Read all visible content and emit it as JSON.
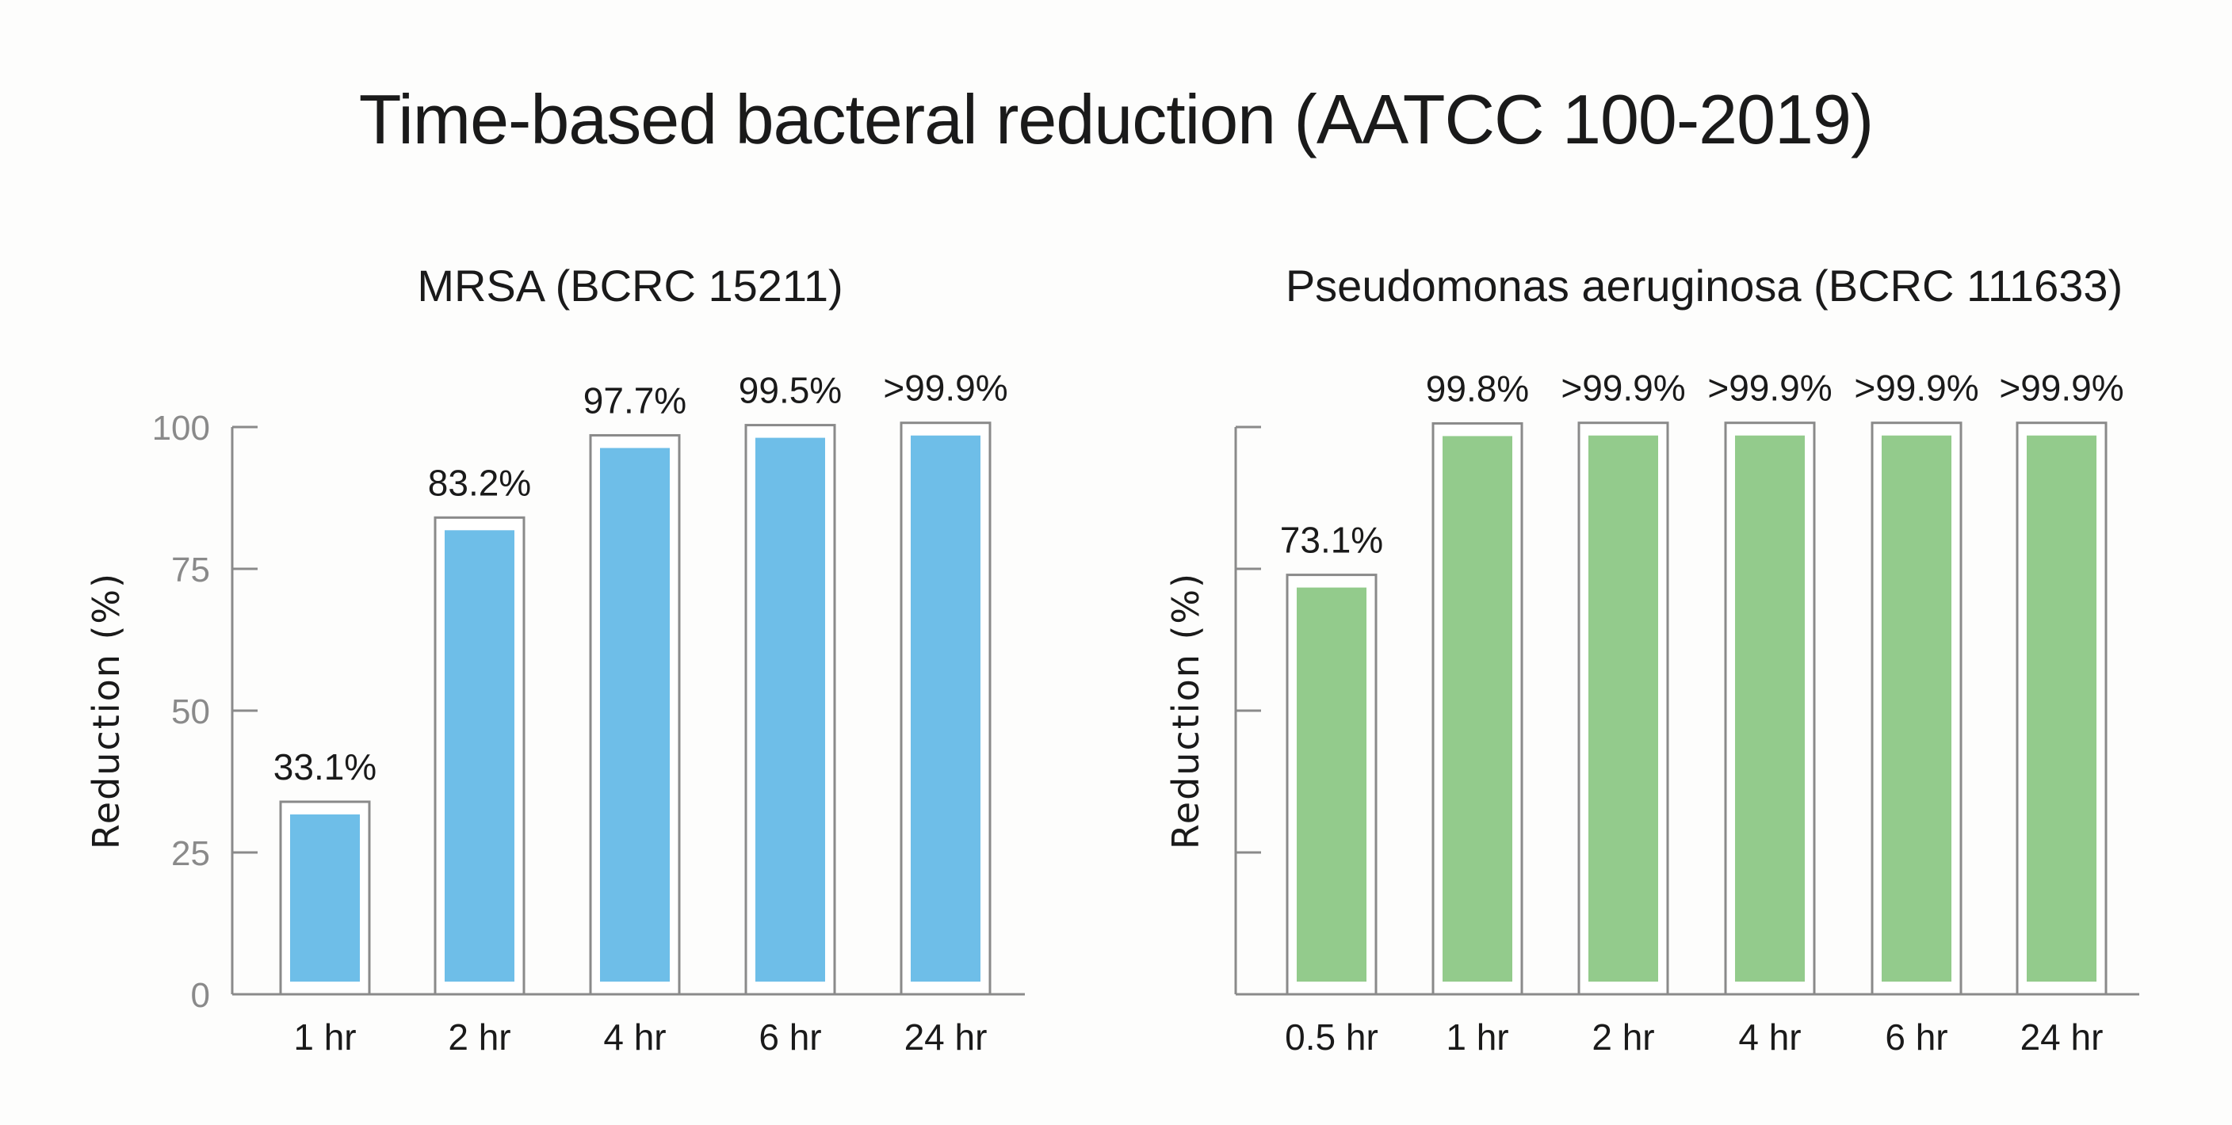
{
  "title": "Time-based bacteral reduction (AATCC 100-2019)",
  "chart_data": [
    {
      "type": "bar",
      "title": "MRSA (BCRC 15211)",
      "xlabel": "",
      "ylabel": "Reduction (%)",
      "ylim": [
        0,
        100
      ],
      "yticks": [
        0,
        25,
        50,
        75,
        100
      ],
      "grid": false,
      "categories": [
        "1 hr",
        "2 hr",
        "4 hr",
        "6 hr",
        "24 hr"
      ],
      "values": [
        33.1,
        83.2,
        97.7,
        99.5,
        99.9
      ],
      "data_labels": [
        "33.1%",
        "83.2%",
        "97.7%",
        "99.5%",
        ">99.9%"
      ],
      "color": "#6EBEE8"
    },
    {
      "type": "bar",
      "title": "Pseudomonas aeruginosa (BCRC 111633)",
      "xlabel": "",
      "ylabel": "Reduction (%)",
      "ylim": [
        0,
        100
      ],
      "yticks": [
        0,
        25,
        50,
        75,
        100
      ],
      "ytick_labels_shown": false,
      "grid": false,
      "categories": [
        "0.5 hr",
        "1 hr",
        "2 hr",
        "4 hr",
        "6 hr",
        "24 hr"
      ],
      "values": [
        73.1,
        99.8,
        99.9,
        99.9,
        99.9,
        99.9
      ],
      "data_labels": [
        "73.1%",
        "99.8%",
        ">99.9%",
        ">99.9%",
        ">99.9%",
        ">99.9%"
      ],
      "color": "#93CB8C"
    }
  ],
  "ytick_labels": [
    "0",
    "25",
    "50",
    "75",
    "100"
  ]
}
